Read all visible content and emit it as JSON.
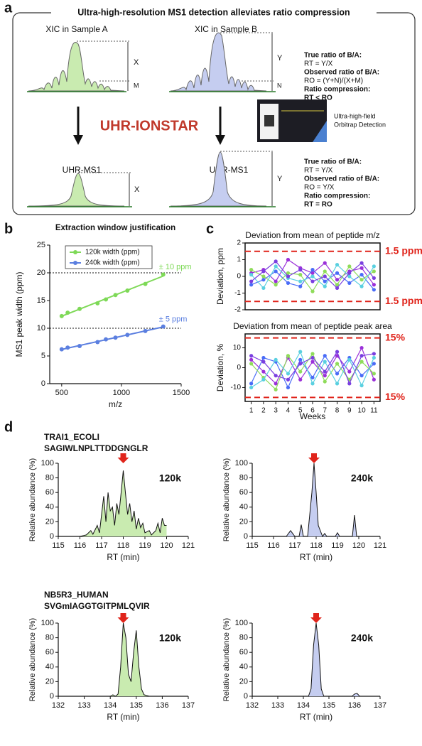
{
  "panel_a": {
    "label": "a",
    "title": "Ultra-high-resolution MS1 detection alleviates ratio compression",
    "sample_a": "XIC in Sample A",
    "sample_b": "XIC in Sample B",
    "top_labels": {
      "x": "X",
      "m": "M",
      "y": "Y",
      "n": "N"
    },
    "method": "UHR-IONSTAR",
    "instrument": [
      "Ultra-high-field",
      "Orbitrap Detection"
    ],
    "uhr_a": "UHR-MS1",
    "uhr_b": "UHR-MS1",
    "bottom_labels": {
      "x": "X",
      "y": "Y"
    },
    "conventional_ratios": [
      "True ratio of B/A:",
      "RT = Y/X",
      "Observed ratio of B/A:",
      "RO = (Y+N)/(X+M)",
      "Ratio compression:",
      "RT < RO"
    ],
    "uhr_ratios": [
      "True ratio of B/A:",
      "RT = Y/X",
      "Observed ratio of B/A:",
      "RO = Y/X",
      "Ratio compression:",
      "RT = RO"
    ]
  },
  "panel_labels": {
    "b": "b",
    "c": "c",
    "d": "d"
  },
  "panel_d": [
    {
      "protein": "TRAI1_ECOLI",
      "peptide": "SAGIWLNPLTTDDGNGLR"
    },
    {
      "protein": "NB5R3_HUMAN",
      "peptide": "SVGmIAGGTGITPMLQVIR"
    }
  ],
  "chart_data": [
    {
      "type": "scatter",
      "title": "Extraction window justification",
      "x_label": "m/z",
      "y_label": "MS1 peak width (ppm)",
      "x": [
        500,
        550,
        650,
        800,
        870,
        950,
        1050,
        1200,
        1350
      ],
      "series": [
        {
          "name": "120k width (ppm)",
          "color": "#7ed957",
          "values": [
            12.2,
            12.8,
            13.5,
            14.5,
            15.2,
            16.0,
            16.8,
            18.0,
            19.7
          ]
        },
        {
          "name": "240k width (ppm)",
          "color": "#5b7fe0",
          "values": [
            6.2,
            6.5,
            6.8,
            7.5,
            8.0,
            8.3,
            8.8,
            9.5,
            10.3
          ]
        }
      ],
      "annotations": [
        "± 10 ppm",
        "± 5 ppm"
      ],
      "reference_lines": [
        20,
        10
      ],
      "xlim": [
        400,
        1500
      ],
      "xticks": [
        500,
        1000,
        1500
      ],
      "ylim": [
        0,
        25
      ],
      "yticks": [
        0,
        5,
        10,
        15,
        20,
        25
      ]
    },
    {
      "type": "line",
      "title": "Deviation from mean of peptide m/z",
      "y_label": "Deviation, ppm",
      "x": [
        1,
        2,
        3,
        4,
        5,
        6,
        7,
        8,
        9,
        10,
        11
      ],
      "series": [
        {
          "color": "#9b30d9",
          "values": [
            0.2,
            0.4,
            -0.3,
            1.0,
            0.5,
            0.2,
            0.8,
            -0.2,
            0.3,
            0.5,
            -0.5
          ]
        },
        {
          "color": "#4a6cf7",
          "values": [
            -0.5,
            -0.2,
            0.3,
            -0.4,
            -0.6,
            0.4,
            -0.3,
            0.2,
            -0.4,
            0.1,
            -0.8
          ]
        },
        {
          "color": "#8fdc5a",
          "values": [
            0.4,
            0.0,
            -0.5,
            0.2,
            0.1,
            -0.9,
            0.3,
            -0.5,
            0.6,
            -0.2,
            0.3
          ]
        },
        {
          "color": "#5ad0e0",
          "values": [
            0.1,
            -0.7,
            0.6,
            -0.1,
            -0.3,
            0.0,
            -0.6,
            0.7,
            0.0,
            -0.6,
            0.6
          ]
        },
        {
          "color": "#7a3fe0",
          "values": [
            -0.3,
            0.3,
            0.9,
            0.0,
            0.4,
            -0.3,
            0.0,
            -0.7,
            0.2,
            0.8,
            -0.1
          ]
        }
      ],
      "thresholds": [
        {
          "value": 1.5,
          "label": "1.5 ppm"
        },
        {
          "value": -1.5,
          "label": "1.5 ppm"
        }
      ],
      "xlim": [
        0.5,
        11.5
      ],
      "ylim": [
        -2,
        2
      ],
      "yticks": [
        -2,
        -1,
        0,
        1,
        2
      ]
    },
    {
      "type": "line",
      "title": "Deviation from mean of peptide peak area",
      "y_label": "Deviation, %",
      "x_label": "Weeks",
      "x": [
        1,
        2,
        3,
        4,
        5,
        6,
        7,
        8,
        9,
        10,
        11
      ],
      "series": [
        {
          "color": "#9b30d9",
          "values": [
            4,
            -2,
            -8,
            5,
            -6,
            3,
            -4,
            6,
            -2,
            10,
            -6
          ]
        },
        {
          "color": "#4a6cf7",
          "values": [
            -8,
            5,
            3,
            -10,
            4,
            -5,
            6,
            -3,
            5,
            -4,
            2
          ]
        },
        {
          "color": "#8fdc5a",
          "values": [
            2,
            -5,
            -11,
            6,
            -2,
            7,
            -7,
            2,
            -6,
            3,
            -3
          ]
        },
        {
          "color": "#5ad0e0",
          "values": [
            -10,
            -6,
            4,
            -3,
            8,
            -8,
            3,
            -8,
            4,
            -9,
            5
          ]
        },
        {
          "color": "#7a3fe0",
          "values": [
            6,
            3,
            -4,
            -6,
            2,
            5,
            -2,
            8,
            -8,
            6,
            7
          ]
        }
      ],
      "thresholds": [
        {
          "value": 15,
          "label": "15%"
        },
        {
          "value": -15,
          "label": "15%"
        }
      ],
      "xlim": [
        0.5,
        11.5
      ],
      "xticks": [
        1,
        2,
        3,
        4,
        5,
        6,
        7,
        8,
        9,
        10,
        11
      ],
      "ylim": [
        -17,
        17
      ],
      "yticks": [
        -10,
        0,
        10
      ]
    },
    {
      "type": "area",
      "label": "120k",
      "x_label": "RT (min)",
      "y_label": "Relative abundance (%)",
      "color": "#c9ebb0",
      "highlight_rt": 118,
      "x": [
        116.0,
        116.3,
        116.5,
        116.6,
        116.8,
        116.9,
        117.0,
        117.1,
        117.2,
        117.3,
        117.4,
        117.5,
        117.6,
        117.7,
        117.8,
        117.9,
        118.0,
        118.1,
        118.2,
        118.3,
        118.4,
        118.5,
        118.6,
        118.7,
        118.8,
        118.9,
        119.0,
        119.2,
        119.3,
        119.5,
        119.6,
        119.7,
        119.8,
        119.9,
        120.0
      ],
      "values": [
        0,
        2,
        8,
        3,
        15,
        5,
        30,
        55,
        20,
        60,
        35,
        40,
        15,
        45,
        30,
        60,
        90,
        60,
        30,
        45,
        20,
        35,
        10,
        25,
        12,
        18,
        5,
        8,
        2,
        8,
        18,
        5,
        25,
        15,
        15
      ],
      "xlim": [
        115,
        121
      ],
      "xticks": [
        115,
        116,
        117,
        118,
        119,
        120,
        121
      ],
      "ylim": [
        0,
        100
      ],
      "yticks": [
        0,
        20,
        40,
        60,
        80,
        100
      ]
    },
    {
      "type": "area",
      "label": "240k",
      "x_label": "RT (min)",
      "y_label": "Relative abundance (%)",
      "color": "#c5cdf0",
      "highlight_rt": 117.9,
      "x": [
        116.6,
        116.8,
        117.0,
        117.2,
        117.3,
        117.4,
        117.6,
        117.8,
        117.9,
        118.0,
        118.1,
        118.3,
        118.4,
        118.5,
        118.9,
        119.0,
        119.1,
        119.7,
        119.8,
        119.9
      ],
      "values": [
        0,
        8,
        0,
        0,
        16,
        0,
        0,
        60,
        100,
        60,
        15,
        0,
        4,
        0,
        0,
        5,
        0,
        0,
        29,
        0
      ],
      "xlim": [
        115,
        121
      ],
      "xticks": [
        115,
        116,
        117,
        118,
        119,
        120,
        121
      ],
      "ylim": [
        0,
        100
      ],
      "yticks": [
        0,
        20,
        40,
        60,
        80,
        100
      ]
    },
    {
      "type": "area",
      "label": "120k",
      "x_label": "RT (min)",
      "y_label": "Relative abundance (%)",
      "color": "#c9ebb0",
      "highlight_rt": 134.5,
      "x": [
        133.5,
        134.0,
        134.1,
        134.2,
        134.3,
        134.4,
        134.5,
        134.6,
        134.7,
        134.8,
        134.9,
        135.0,
        135.1,
        135.2,
        135.3,
        135.5
      ],
      "values": [
        0,
        0,
        2,
        0,
        3,
        40,
        100,
        80,
        30,
        20,
        60,
        90,
        40,
        10,
        2,
        0
      ],
      "xlim": [
        132,
        137
      ],
      "xticks": [
        132,
        133,
        134,
        135,
        136,
        137
      ],
      "ylim": [
        0,
        100
      ],
      "yticks": [
        0,
        20,
        40,
        60,
        80,
        100
      ]
    },
    {
      "type": "area",
      "label": "240k",
      "x_label": "RT (min)",
      "y_label": "Relative abundance (%)",
      "color": "#c5cdf0",
      "highlight_rt": 134.5,
      "x": [
        133.0,
        134.2,
        134.3,
        134.4,
        134.5,
        134.6,
        134.7,
        134.8,
        135.9,
        136.0,
        136.1,
        136.2,
        136.5
      ],
      "values": [
        0,
        0,
        10,
        70,
        100,
        70,
        10,
        0,
        0,
        3,
        4,
        0,
        0
      ],
      "xlim": [
        132,
        137
      ],
      "xticks": [
        132,
        133,
        134,
        135,
        136,
        137
      ],
      "ylim": [
        0,
        100
      ],
      "yticks": [
        0,
        20,
        40,
        60,
        80,
        100
      ]
    }
  ]
}
